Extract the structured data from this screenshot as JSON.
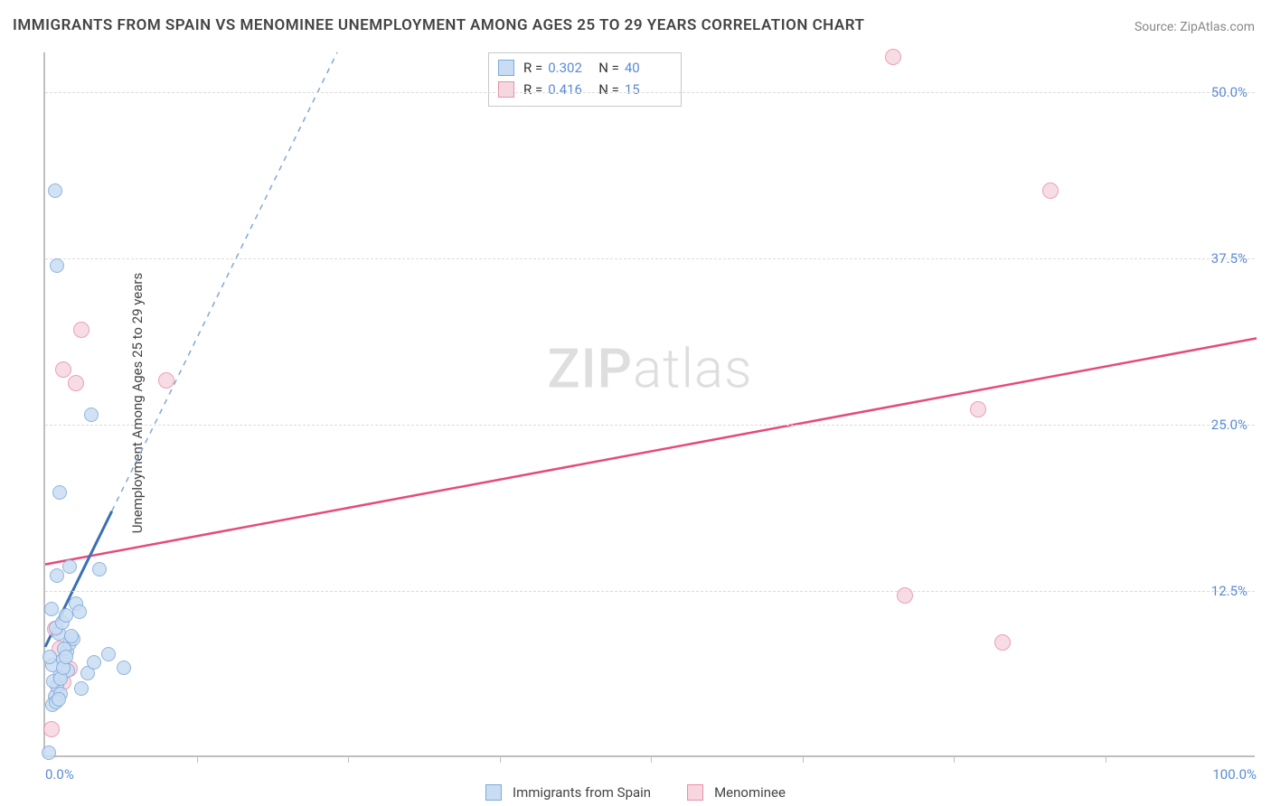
{
  "title": "IMMIGRANTS FROM SPAIN VS MENOMINEE UNEMPLOYMENT AMONG AGES 25 TO 29 YEARS CORRELATION CHART",
  "source_prefix": "Source: ",
  "source_name": "ZipAtlas.com",
  "ylabel": "Unemployment Among Ages 25 to 29 years",
  "watermark_bold": "ZIP",
  "watermark_thin": "atlas",
  "plot": {
    "x_domain": [
      0,
      100
    ],
    "y_domain": [
      0,
      53
    ],
    "grid_y": [
      12.5,
      25,
      37.5,
      50
    ],
    "y_tick_labels": [
      "12.5%",
      "25.0%",
      "37.5%",
      "50.0%"
    ],
    "x_ticks_major": [
      0,
      100
    ],
    "x_tick_labels": [
      "0.0%",
      "100.0%"
    ],
    "x_ticks_minor": [
      12.5,
      25,
      37.5,
      50,
      62.5,
      75,
      87.5
    ],
    "grid_color": "#dcdcdc",
    "axis_color": "#bfbfbf",
    "tick_label_color": "#5a8bd6"
  },
  "series": {
    "a": {
      "label": "Immigrants from Spain",
      "fill": "#c8ddf3",
      "stroke": "#7fa8d9",
      "line_color": "#3b6fb5",
      "dash_color": "#7fa8d9",
      "marker_r": 8,
      "R_label": "R =",
      "R": "0.302",
      "N_label": "N =",
      "N": "40",
      "trend": {
        "x1": 0,
        "y1": 8.3,
        "x2": 5.5,
        "y2": 18.5,
        "extend_to_y": 53
      },
      "points": [
        [
          0.3,
          0.2
        ],
        [
          0.8,
          4.4
        ],
        [
          1.0,
          5.2
        ],
        [
          1.2,
          6.0
        ],
        [
          0.6,
          6.8
        ],
        [
          1.5,
          7.2
        ],
        [
          1.8,
          7.8
        ],
        [
          2.0,
          8.4
        ],
        [
          2.3,
          8.8
        ],
        [
          1.1,
          9.2
        ],
        [
          0.9,
          9.6
        ],
        [
          1.4,
          10.0
        ],
        [
          1.7,
          10.5
        ],
        [
          0.5,
          11.0
        ],
        [
          2.5,
          11.4
        ],
        [
          3.0,
          5.0
        ],
        [
          3.5,
          6.2
        ],
        [
          4.0,
          7.0
        ],
        [
          1.3,
          4.6
        ],
        [
          0.7,
          5.6
        ],
        [
          1.9,
          6.4
        ],
        [
          2.2,
          9.0
        ],
        [
          1.6,
          8.0
        ],
        [
          0.4,
          7.4
        ],
        [
          2.8,
          10.8
        ],
        [
          5.2,
          7.6
        ],
        [
          6.5,
          6.6
        ],
        [
          1.0,
          13.5
        ],
        [
          2.0,
          14.2
        ],
        [
          4.5,
          14.0
        ],
        [
          1.2,
          19.8
        ],
        [
          3.8,
          25.6
        ],
        [
          1.0,
          36.8
        ],
        [
          0.8,
          42.5
        ],
        [
          0.6,
          3.8
        ],
        [
          0.9,
          4.0
        ],
        [
          1.1,
          4.2
        ],
        [
          1.3,
          5.8
        ],
        [
          1.5,
          6.6
        ],
        [
          1.7,
          7.4
        ]
      ]
    },
    "b": {
      "label": "Menominee",
      "fill": "#f7d6e0",
      "stroke": "#e890ac",
      "line_color": "#e64a7b",
      "marker_r": 9,
      "R_label": "R =",
      "R": "0.416",
      "N_label": "N =",
      "N": "15",
      "trend": {
        "x1": 0,
        "y1": 14.5,
        "x2": 100,
        "y2": 31.5
      },
      "points": [
        [
          0.5,
          2.0
        ],
        [
          1.0,
          4.5
        ],
        [
          1.5,
          5.5
        ],
        [
          2.0,
          6.5
        ],
        [
          1.2,
          8.0
        ],
        [
          0.8,
          9.5
        ],
        [
          2.5,
          28.0
        ],
        [
          1.5,
          29.0
        ],
        [
          3.0,
          32.0
        ],
        [
          10.0,
          28.2
        ],
        [
          71.0,
          12.0
        ],
        [
          79.0,
          8.5
        ],
        [
          77.0,
          26.0
        ],
        [
          83.0,
          42.5
        ],
        [
          70.0,
          52.5
        ]
      ]
    }
  },
  "stats_box": {
    "border": "#c8c8c8"
  },
  "legend_bottom": true
}
